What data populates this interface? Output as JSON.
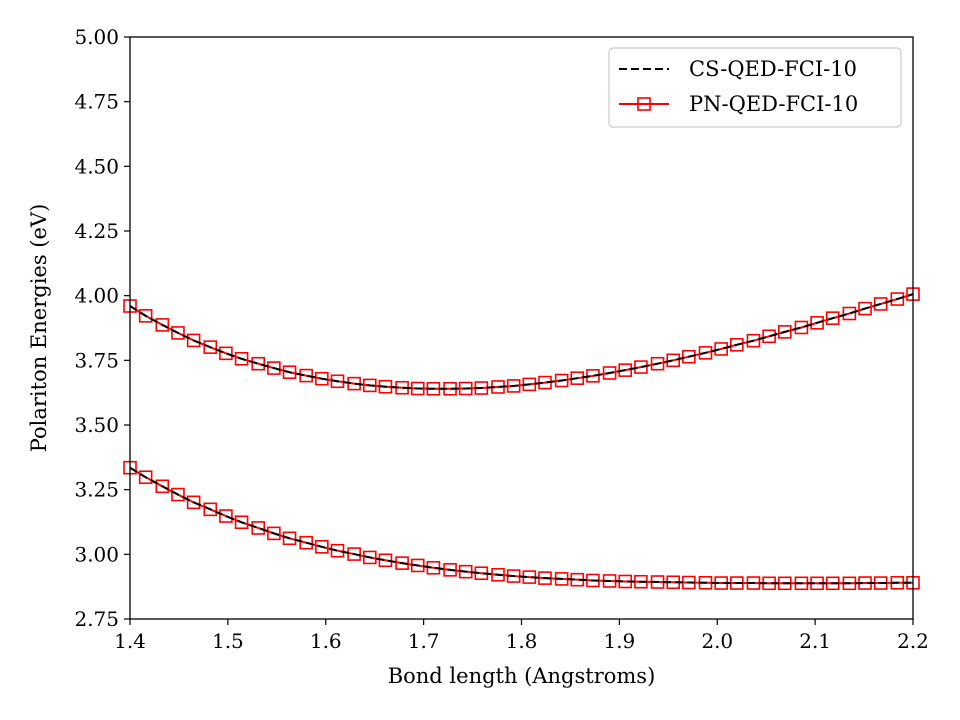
{
  "chart_data": {
    "type": "line",
    "title": "",
    "xlabel": "Bond length (Angstroms)",
    "ylabel": "Polariton Energies (eV)",
    "xlim": [
      1.4,
      2.2
    ],
    "ylim": [
      2.75,
      5.0
    ],
    "xticks": [
      "1.4",
      "1.5",
      "1.6",
      "1.7",
      "1.8",
      "1.9",
      "2.0",
      "2.1",
      "2.2"
    ],
    "yticks": [
      "2.75",
      "3.00",
      "3.25",
      "3.50",
      "3.75",
      "4.00",
      "4.25",
      "4.50",
      "4.75",
      "5.00"
    ],
    "grid": false,
    "legend_position": "top-right",
    "legend": [
      {
        "label": "CS-QED-FCI-10",
        "color": "#000000",
        "style": "dashed",
        "marker": "none"
      },
      {
        "label": "PN-QED-FCI-10",
        "color": "#ff0000",
        "style": "solid",
        "marker": "square"
      }
    ],
    "x": [
      1.4,
      1.416,
      1.433,
      1.449,
      1.465,
      1.482,
      1.498,
      1.514,
      1.531,
      1.547,
      1.563,
      1.58,
      1.596,
      1.612,
      1.629,
      1.645,
      1.661,
      1.678,
      1.694,
      1.71,
      1.727,
      1.743,
      1.759,
      1.776,
      1.792,
      1.808,
      1.824,
      1.841,
      1.857,
      1.873,
      1.89,
      1.906,
      1.922,
      1.939,
      1.955,
      1.971,
      1.988,
      2.004,
      2.02,
      2.037,
      2.053,
      2.069,
      2.086,
      2.102,
      2.118,
      2.135,
      2.151,
      2.167,
      2.184,
      2.2
    ],
    "series": [
      {
        "name": "PN-QED-FCI-10",
        "color": "#ff0000",
        "values": [
          3.335,
          3.298,
          3.263,
          3.231,
          3.201,
          3.174,
          3.148,
          3.124,
          3.102,
          3.081,
          3.062,
          3.045,
          3.029,
          3.014,
          3.001,
          2.988,
          2.977,
          2.966,
          2.957,
          2.948,
          2.94,
          2.933,
          2.927,
          2.921,
          2.916,
          2.912,
          2.908,
          2.905,
          2.902,
          2.899,
          2.897,
          2.895,
          2.894,
          2.893,
          2.892,
          2.891,
          2.89,
          2.889,
          2.889,
          2.889,
          2.888,
          2.888,
          2.888,
          2.888,
          2.888,
          2.888,
          2.889,
          2.889,
          2.89,
          2.89
        ]
      },
      {
        "name": "PN-QED-FCI-10",
        "color": "#ff0000",
        "values": [
          3.96,
          3.922,
          3.887,
          3.856,
          3.827,
          3.801,
          3.777,
          3.756,
          3.737,
          3.72,
          3.704,
          3.691,
          3.679,
          3.669,
          3.66,
          3.653,
          3.648,
          3.644,
          3.641,
          3.64,
          3.64,
          3.641,
          3.643,
          3.647,
          3.651,
          3.657,
          3.664,
          3.672,
          3.681,
          3.69,
          3.701,
          3.712,
          3.724,
          3.737,
          3.75,
          3.764,
          3.779,
          3.794,
          3.81,
          3.826,
          3.843,
          3.86,
          3.877,
          3.895,
          3.913,
          3.931,
          3.95,
          3.968,
          3.987,
          4.006
        ]
      },
      {
        "name": "CS-QED-FCI-10",
        "color": "#000000",
        "values": [
          3.335,
          3.298,
          3.263,
          3.231,
          3.201,
          3.174,
          3.148,
          3.124,
          3.102,
          3.081,
          3.062,
          3.045,
          3.029,
          3.014,
          3.001,
          2.988,
          2.977,
          2.966,
          2.957,
          2.948,
          2.94,
          2.933,
          2.927,
          2.921,
          2.916,
          2.912,
          2.908,
          2.905,
          2.902,
          2.899,
          2.897,
          2.895,
          2.894,
          2.893,
          2.892,
          2.891,
          2.89,
          2.889,
          2.889,
          2.889,
          2.888,
          2.888,
          2.888,
          2.888,
          2.888,
          2.888,
          2.889,
          2.889,
          2.89,
          2.89
        ]
      },
      {
        "name": "CS-QED-FCI-10",
        "color": "#000000",
        "values": [
          3.96,
          3.922,
          3.887,
          3.856,
          3.827,
          3.801,
          3.777,
          3.756,
          3.737,
          3.72,
          3.704,
          3.691,
          3.679,
          3.669,
          3.66,
          3.653,
          3.648,
          3.644,
          3.641,
          3.64,
          3.64,
          3.641,
          3.643,
          3.647,
          3.651,
          3.657,
          3.664,
          3.672,
          3.681,
          3.69,
          3.701,
          3.712,
          3.724,
          3.737,
          3.75,
          3.764,
          3.779,
          3.794,
          3.81,
          3.826,
          3.843,
          3.86,
          3.877,
          3.895,
          3.913,
          3.931,
          3.95,
          3.968,
          3.987,
          4.006
        ]
      }
    ]
  }
}
